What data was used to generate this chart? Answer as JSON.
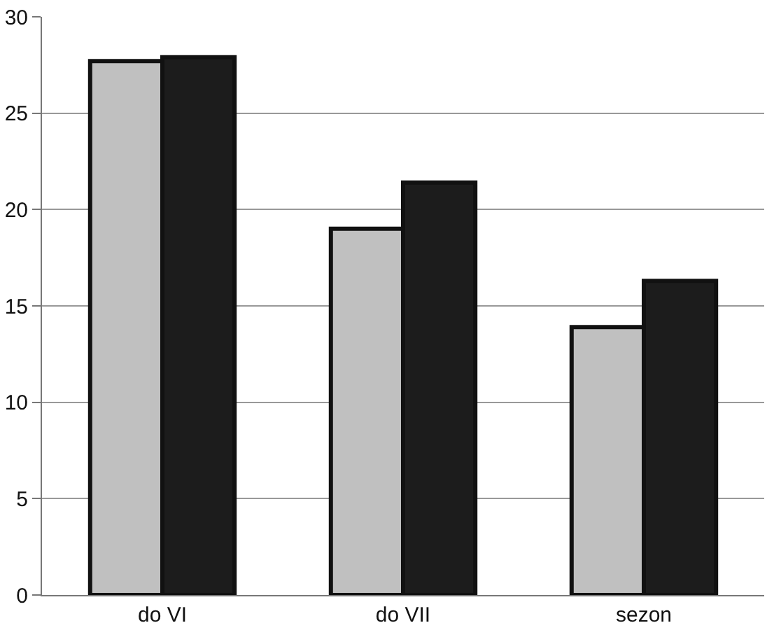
{
  "chart_data": {
    "type": "bar",
    "categories": [
      "do VI",
      "do VII",
      "sezon"
    ],
    "series": [
      {
        "color": "#c0c0c0",
        "values": [
          27.7,
          19.0,
          13.9
        ]
      },
      {
        "color": "#1c1c1c",
        "values": [
          27.9,
          21.4,
          16.3
        ]
      }
    ],
    "ylim": [
      0,
      30
    ],
    "yticks": [
      0,
      5,
      10,
      15,
      20,
      25,
      30
    ],
    "grid": "y"
  }
}
